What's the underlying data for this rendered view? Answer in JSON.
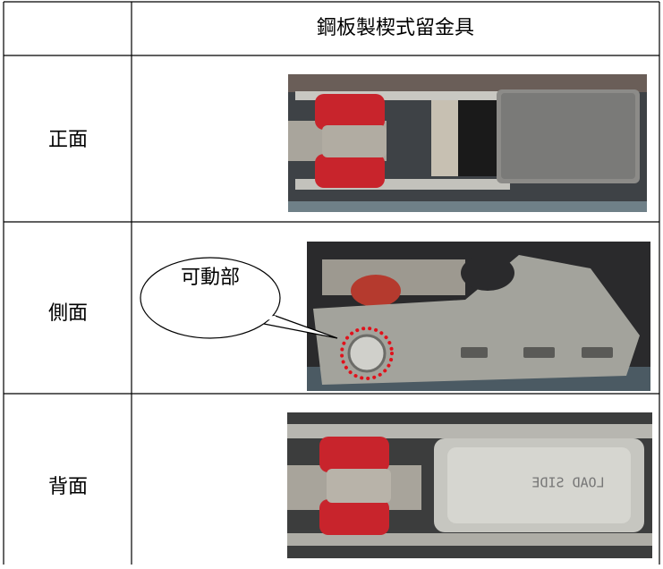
{
  "table": {
    "header": {
      "title": "鋼板製楔式留金具"
    },
    "rows": [
      {
        "label": "正面"
      },
      {
        "label": "側面",
        "callout": "可動部"
      },
      {
        "label": "背面",
        "photo_text": "LOAD SIDE"
      }
    ]
  }
}
